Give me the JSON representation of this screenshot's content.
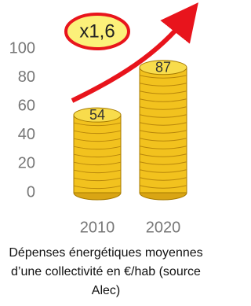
{
  "chart_data": {
    "type": "bar",
    "title": "Dépenses énergétiques moyennes d’une collectivité en €/hab (source Alec)",
    "annotation": "x1,6",
    "categories": [
      "2010",
      "2020"
    ],
    "values": [
      54,
      87
    ],
    "color": "#f2c21e",
    "ylim": [
      0,
      100
    ],
    "yticks": [
      0,
      20,
      40,
      60,
      80,
      100
    ],
    "grid": false
  }
}
